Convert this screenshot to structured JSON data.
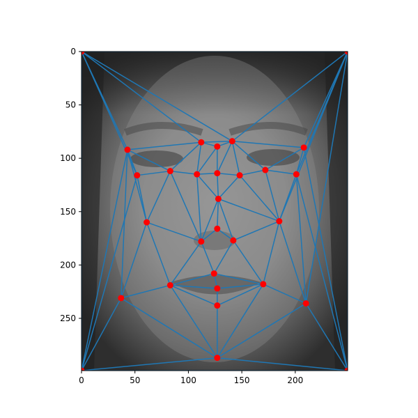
{
  "chart_data": {
    "type": "scatter",
    "background": "grayscale averaged face image",
    "xlim": [
      0,
      249
    ],
    "ylim": [
      299,
      0
    ],
    "y_inverted": true,
    "x_ticks": [
      "0",
      "50",
      "100",
      "150",
      "200"
    ],
    "y_ticks": [
      "0",
      "50",
      "100",
      "150",
      "200",
      "250"
    ],
    "title": "",
    "xlabel": "",
    "ylabel": "",
    "grid": false,
    "legend": "none",
    "colors": {
      "point": "#ff0000",
      "edge": "#1f77b4"
    },
    "points": [
      {
        "x": 0,
        "y": 0
      },
      {
        "x": 249,
        "y": 0
      },
      {
        "x": 0,
        "y": 299
      },
      {
        "x": 249,
        "y": 299
      },
      {
        "x": 43,
        "y": 92
      },
      {
        "x": 52,
        "y": 116
      },
      {
        "x": 83,
        "y": 112
      },
      {
        "x": 108,
        "y": 115
      },
      {
        "x": 112,
        "y": 85
      },
      {
        "x": 127,
        "y": 89
      },
      {
        "x": 141,
        "y": 84
      },
      {
        "x": 127,
        "y": 114
      },
      {
        "x": 148,
        "y": 116
      },
      {
        "x": 172,
        "y": 111
      },
      {
        "x": 208,
        "y": 90
      },
      {
        "x": 201,
        "y": 115
      },
      {
        "x": 128,
        "y": 138
      },
      {
        "x": 61,
        "y": 160
      },
      {
        "x": 185,
        "y": 159
      },
      {
        "x": 127,
        "y": 166
      },
      {
        "x": 112,
        "y": 178
      },
      {
        "x": 142,
        "y": 177
      },
      {
        "x": 124,
        "y": 208
      },
      {
        "x": 83,
        "y": 219
      },
      {
        "x": 170,
        "y": 218
      },
      {
        "x": 127,
        "y": 222
      },
      {
        "x": 37,
        "y": 231
      },
      {
        "x": 210,
        "y": 236
      },
      {
        "x": 127,
        "y": 238
      },
      {
        "x": 127,
        "y": 287
      }
    ],
    "edges": [
      [
        0,
        1
      ],
      [
        0,
        2
      ],
      [
        1,
        3
      ],
      [
        2,
        3
      ],
      [
        0,
        4
      ],
      [
        0,
        5
      ],
      [
        0,
        8
      ],
      [
        0,
        10
      ],
      [
        1,
        10
      ],
      [
        1,
        14
      ],
      [
        1,
        15
      ],
      [
        1,
        27
      ],
      [
        1,
        18
      ],
      [
        2,
        4
      ],
      [
        2,
        5
      ],
      [
        2,
        26
      ],
      [
        2,
        29
      ],
      [
        3,
        14
      ],
      [
        3,
        15
      ],
      [
        3,
        27
      ],
      [
        3,
        29
      ],
      [
        4,
        5
      ],
      [
        4,
        6
      ],
      [
        4,
        8
      ],
      [
        4,
        17
      ],
      [
        4,
        26
      ],
      [
        5,
        6
      ],
      [
        5,
        17
      ],
      [
        6,
        8
      ],
      [
        6,
        7
      ],
      [
        6,
        17
      ],
      [
        6,
        20
      ],
      [
        7,
        8
      ],
      [
        7,
        9
      ],
      [
        7,
        11
      ],
      [
        7,
        20
      ],
      [
        8,
        9
      ],
      [
        9,
        10
      ],
      [
        8,
        10
      ],
      [
        10,
        14
      ],
      [
        10,
        13
      ],
      [
        10,
        12
      ],
      [
        10,
        11
      ],
      [
        9,
        11
      ],
      [
        11,
        12
      ],
      [
        11,
        16
      ],
      [
        12,
        13
      ],
      [
        12,
        16
      ],
      [
        13,
        14
      ],
      [
        13,
        15
      ],
      [
        13,
        18
      ],
      [
        14,
        15
      ],
      [
        15,
        18
      ],
      [
        15,
        27
      ],
      [
        16,
        18
      ],
      [
        16,
        19
      ],
      [
        16,
        20
      ],
      [
        7,
        16
      ],
      [
        12,
        18
      ],
      [
        16,
        21
      ],
      [
        19,
        20
      ],
      [
        19,
        21
      ],
      [
        17,
        20
      ],
      [
        17,
        23
      ],
      [
        17,
        26
      ],
      [
        20,
        22
      ],
      [
        20,
        23
      ],
      [
        21,
        22
      ],
      [
        21,
        24
      ],
      [
        18,
        21
      ],
      [
        18,
        24
      ],
      [
        22,
        23
      ],
      [
        22,
        24
      ],
      [
        22,
        25
      ],
      [
        23,
        25
      ],
      [
        24,
        25
      ],
      [
        23,
        28
      ],
      [
        24,
        28
      ],
      [
        25,
        28
      ],
      [
        23,
        26
      ],
      [
        23,
        29
      ],
      [
        26,
        29
      ],
      [
        28,
        29
      ],
      [
        24,
        29
      ],
      [
        24,
        27
      ],
      [
        27,
        29
      ],
      [
        18,
        27
      ]
    ]
  }
}
